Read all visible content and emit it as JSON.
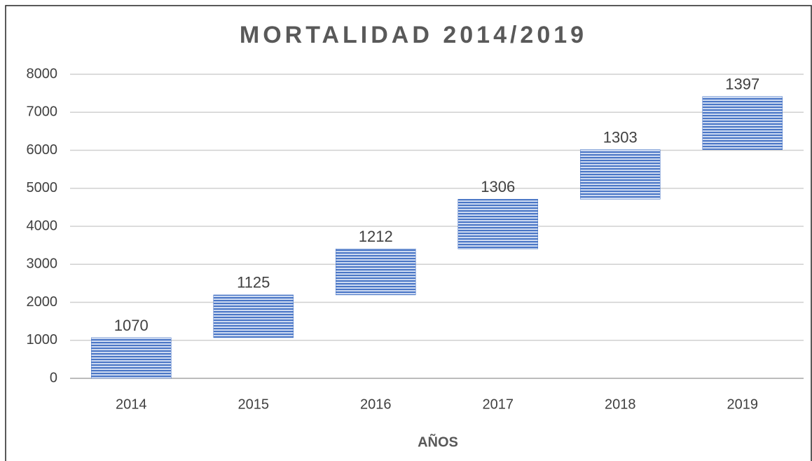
{
  "chart_data": {
    "type": "waterfall",
    "title": "MORTALIDAD 2014/2019",
    "x_label": "AÑOS",
    "categories": [
      "2014",
      "2015",
      "2016",
      "2017",
      "2018",
      "2019"
    ],
    "values": [
      1070,
      1125,
      1212,
      1306,
      1303,
      1397
    ],
    "color": "#4472c4",
    "ylim": [
      0,
      8000
    ],
    "yticks": [
      0,
      1000,
      2000,
      3000,
      4000,
      5000,
      6000,
      7000,
      8000
    ],
    "grid": true
  }
}
